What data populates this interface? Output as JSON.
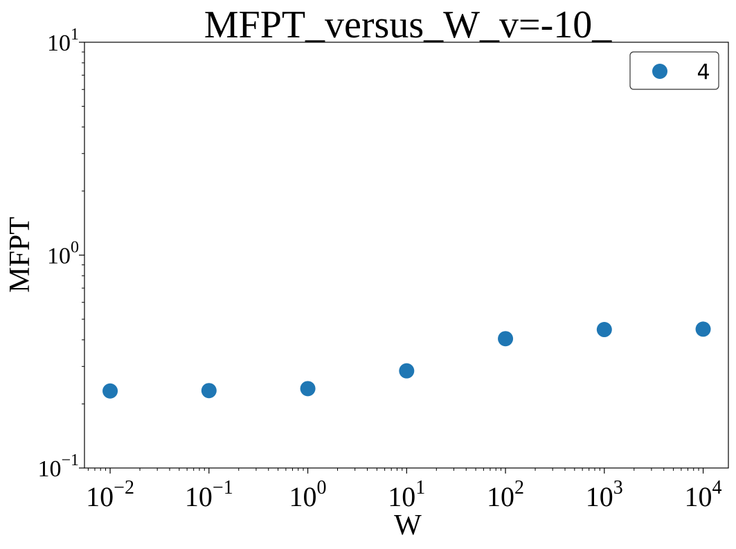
{
  "chart_data": {
    "type": "scatter",
    "title": "MFPT_versus_W_v=-10_",
    "xlabel": "W",
    "ylabel": "MFPT",
    "xscale": "log",
    "yscale": "log",
    "xlim": [
      0.0055,
      18000
    ],
    "ylim": [
      0.1,
      10
    ],
    "xticks": [
      {
        "value": 0.01,
        "base": "10",
        "exp": "−2"
      },
      {
        "value": 0.1,
        "base": "10",
        "exp": "−1"
      },
      {
        "value": 1,
        "base": "10",
        "exp": "0"
      },
      {
        "value": 10,
        "base": "10",
        "exp": "1"
      },
      {
        "value": 100,
        "base": "10",
        "exp": "2"
      },
      {
        "value": 1000,
        "base": "10",
        "exp": "3"
      },
      {
        "value": 10000,
        "base": "10",
        "exp": "4"
      }
    ],
    "yticks": [
      {
        "value": 0.1,
        "base": "10",
        "exp": "−1"
      },
      {
        "value": 1,
        "base": "10",
        "exp": "0"
      },
      {
        "value": 10,
        "base": "10",
        "exp": "1"
      }
    ],
    "grid": false,
    "legend_position": "top-right",
    "series": [
      {
        "name": "4",
        "color": "#1f77b4",
        "x": [
          0.01,
          0.1,
          1,
          10,
          100,
          1000,
          10000
        ],
        "y": [
          0.23,
          0.231,
          0.236,
          0.286,
          0.405,
          0.447,
          0.449
        ]
      }
    ]
  }
}
